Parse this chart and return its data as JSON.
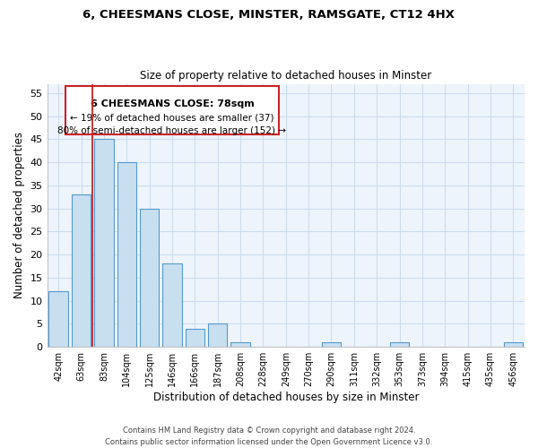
{
  "title_line1": "6, CHEESMANS CLOSE, MINSTER, RAMSGATE, CT12 4HX",
  "title_line2": "Size of property relative to detached houses in Minster",
  "xlabel": "Distribution of detached houses by size in Minster",
  "ylabel": "Number of detached properties",
  "bar_labels": [
    "42sqm",
    "63sqm",
    "83sqm",
    "104sqm",
    "125sqm",
    "146sqm",
    "166sqm",
    "187sqm",
    "208sqm",
    "228sqm",
    "249sqm",
    "270sqm",
    "290sqm",
    "311sqm",
    "332sqm",
    "353sqm",
    "373sqm",
    "394sqm",
    "415sqm",
    "435sqm",
    "456sqm"
  ],
  "bar_values": [
    12,
    33,
    45,
    40,
    30,
    18,
    4,
    5,
    1,
    0,
    0,
    0,
    1,
    0,
    0,
    1,
    0,
    0,
    0,
    0,
    1
  ],
  "bar_color": "#c8dff0",
  "bar_edge_color": "#5599cc",
  "vline_color": "#cc2222",
  "annotation_line1": "6 CHEESMANS CLOSE: 78sqm",
  "annotation_line2": "← 19% of detached houses are smaller (37)",
  "annotation_line3": "80% of semi-detached houses are larger (152) →",
  "ylim": [
    0,
    57
  ],
  "yticks": [
    0,
    5,
    10,
    15,
    20,
    25,
    30,
    35,
    40,
    45,
    50,
    55
  ],
  "footer_line1": "Contains HM Land Registry data © Crown copyright and database right 2024.",
  "footer_line2": "Contains public sector information licensed under the Open Government Licence v3.0.",
  "bg_color": "#ffffff",
  "grid_color": "#ccddf0",
  "ax_bg_color": "#eef4fc"
}
